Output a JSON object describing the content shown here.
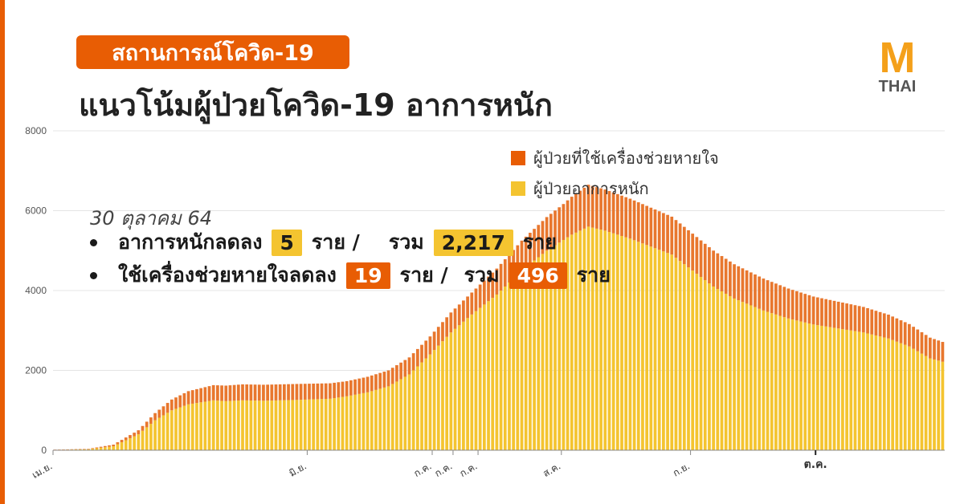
{
  "badge": {
    "text": "สถานการณ์โควิด-19"
  },
  "title": "แนวโน้มผู้ป่วยโควิด-19 อาการหนัก",
  "logo": {
    "letter": "M",
    "text": "THAI"
  },
  "legend": [
    {
      "label": "ผู้ป่วยที่ใช้เครื่องช่วยหายใจ",
      "color": "#e8772e"
    },
    {
      "label": "ผู้ป่วยอาการหนัก",
      "color": "#f4c430"
    }
  ],
  "stats": {
    "date": "30 ตุลาคม 64",
    "line1": {
      "label": "อาการหนักลดลง",
      "change": "5",
      "unit1": "ราย /",
      "total_label": "รวม",
      "total": "2,217",
      "unit2": "ราย"
    },
    "line2": {
      "label": "ใช้เครื่องช่วยหายใจลดลง",
      "change": "19",
      "unit1": "ราย /",
      "total_label": "รวม",
      "total": "496",
      "unit2": "ราย"
    }
  },
  "colors": {
    "brand": "#e85d04",
    "severe": "#f4c430",
    "ventilator": "#e8772e"
  },
  "chart_data": {
    "type": "bar",
    "stacked": true,
    "ylim": [
      0,
      8000
    ],
    "yticks": [
      0,
      2000,
      4000,
      6000,
      8000
    ],
    "grid": true,
    "legend_position": "top-right",
    "xticks": [
      {
        "label": "เม.ย.",
        "day": 0
      },
      {
        "label": "มิ.ย.",
        "day": 61
      },
      {
        "label": "ก.ค.",
        "day": 91
      },
      {
        "label": "ก.ค.",
        "day": 96
      },
      {
        "label": "ก.ค.",
        "day": 102
      },
      {
        "label": "ส.ค.",
        "day": 122
      },
      {
        "label": "ก.ย.",
        "day": 153
      },
      {
        "label": "ต.ค.",
        "day": 183,
        "bold": true
      }
    ],
    "anchors_note": "day index from 1 Apr 2021",
    "series": [
      {
        "name": "ผู้ป่วยอาการหนัก",
        "key_days": [
          0,
          3,
          8,
          14,
          20,
          24,
          28,
          32,
          38,
          41,
          45,
          50,
          58,
          66,
          70,
          75,
          80,
          85,
          90,
          95,
          100,
          106,
          112,
          118,
          124,
          128,
          132,
          138,
          143,
          148,
          153,
          158,
          163,
          170,
          176,
          182,
          188,
          194,
          200,
          205,
          210,
          213
        ],
        "values": [
          10,
          15,
          25,
          100,
          400,
          750,
          1000,
          1150,
          1250,
          1230,
          1250,
          1240,
          1260,
          1290,
          1350,
          1450,
          1600,
          1900,
          2400,
          2950,
          3400,
          3900,
          4500,
          5000,
          5400,
          5600,
          5500,
          5300,
          5100,
          4900,
          4500,
          4100,
          3800,
          3500,
          3300,
          3150,
          3050,
          2950,
          2800,
          2600,
          2300,
          2217
        ]
      },
      {
        "name": "ผู้ป่วยที่ใช้เครื่องช่วยหายใจ",
        "key_days": [
          0,
          8,
          14,
          20,
          24,
          28,
          32,
          38,
          45,
          58,
          70,
          80,
          90,
          100,
          112,
          122,
          128,
          138,
          148,
          158,
          170,
          182,
          194,
          205,
          213
        ],
        "values": [
          5,
          10,
          40,
          100,
          180,
          270,
          330,
          380,
          400,
          400,
          380,
          400,
          450,
          550,
          750,
          900,
          1050,
          1000,
          950,
          900,
          800,
          700,
          640,
          560,
          496
        ]
      }
    ]
  }
}
